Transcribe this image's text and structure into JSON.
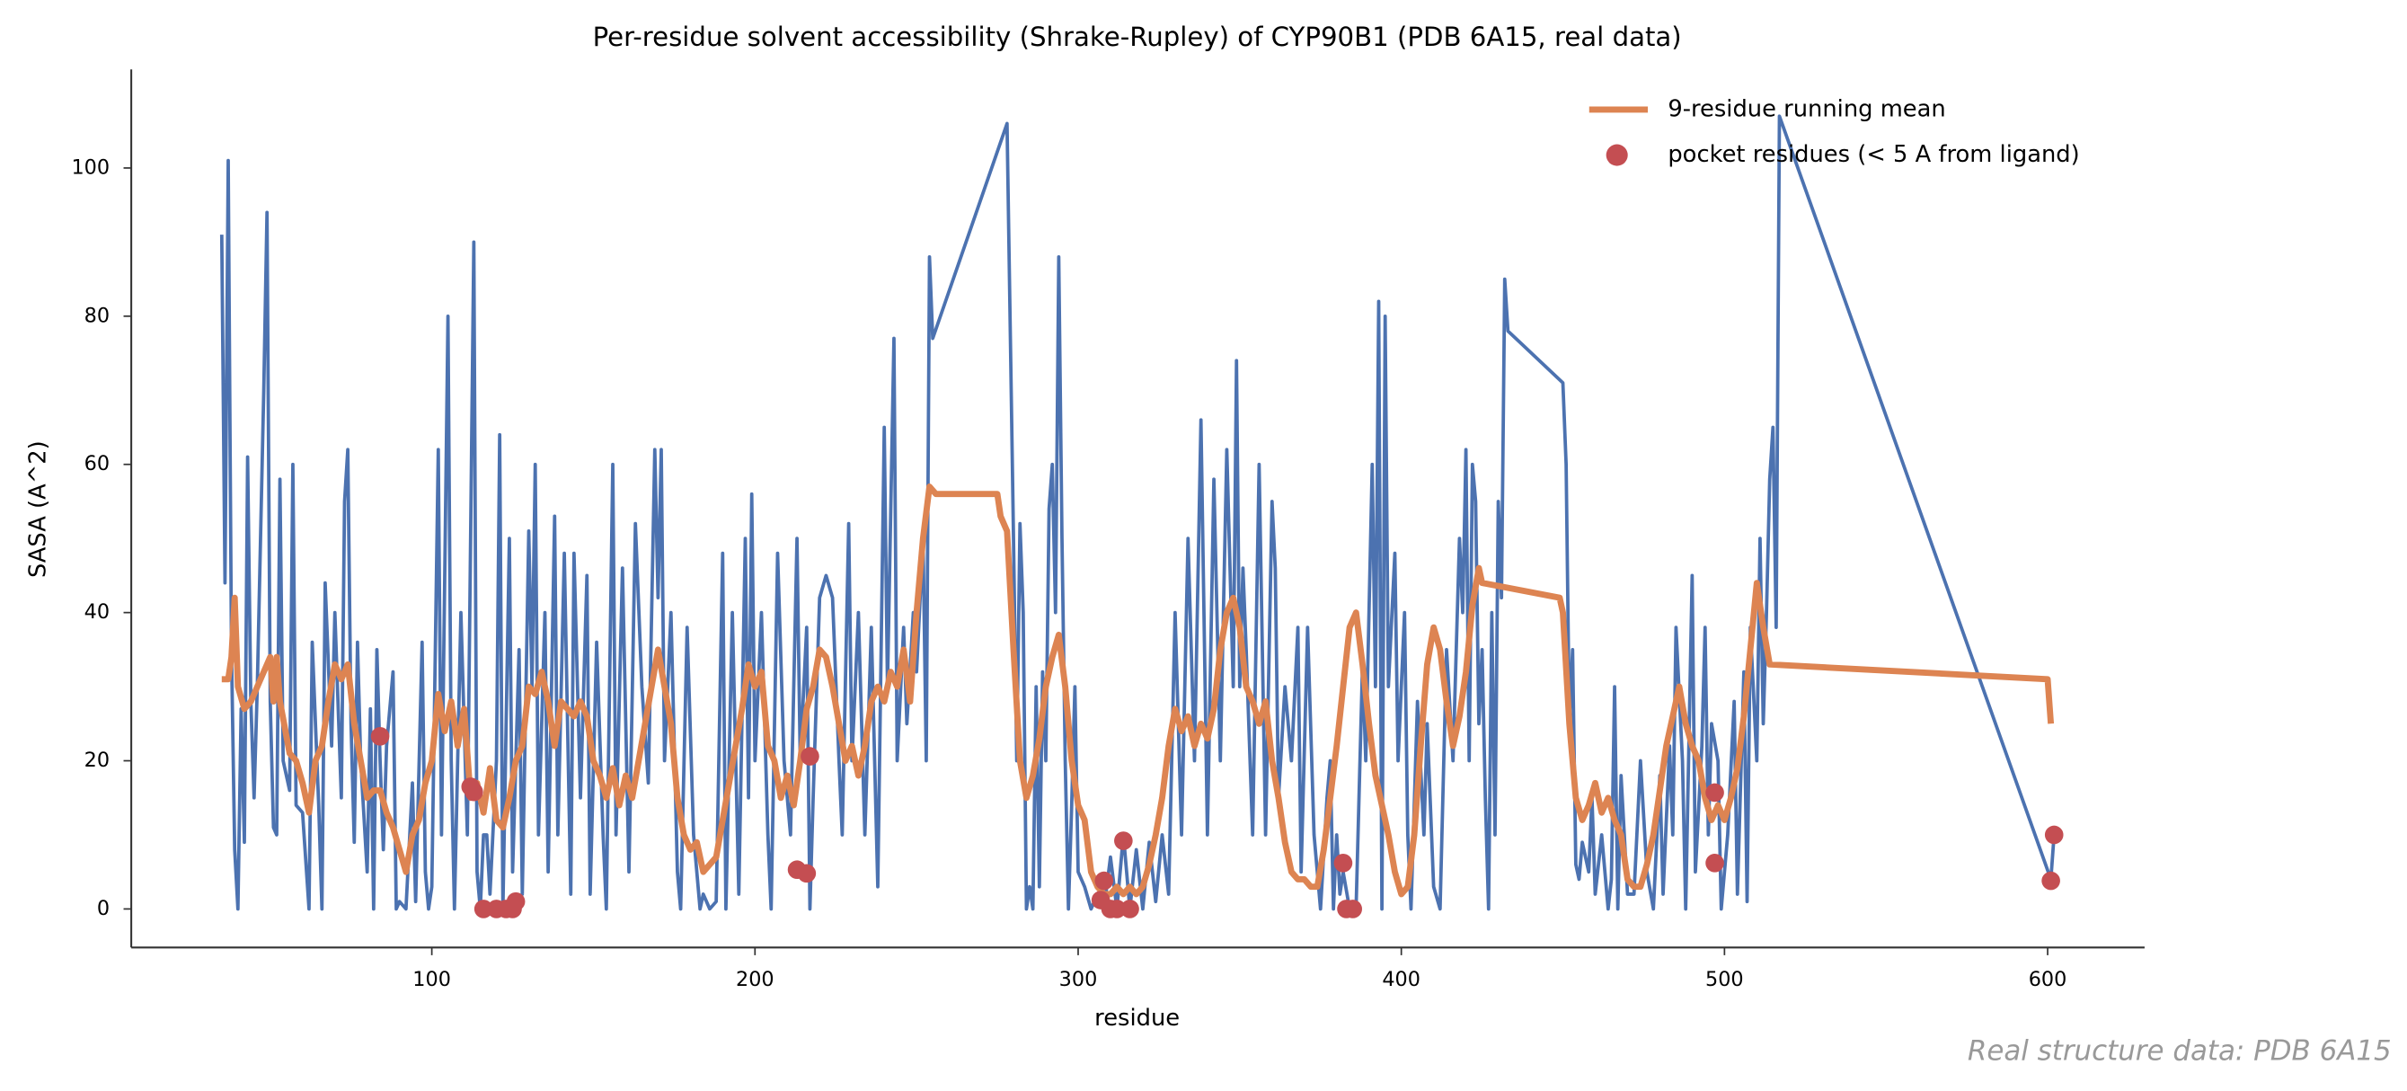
{
  "chart_data": {
    "type": "line",
    "title": "Per-residue solvent accessibility (Shrake-Rupley) of CYP90B1 (PDB 6A15, real data)",
    "xlabel": "residue",
    "ylabel": "SASA (A^2)",
    "annotation": "Real structure data: PDB 6A15",
    "xlim": [
      7,
      630
    ],
    "ylim": [
      -5.2,
      113.3
    ],
    "xticks": [
      100,
      200,
      300,
      400,
      500,
      600
    ],
    "yticks": [
      0,
      20,
      40,
      60,
      80,
      100
    ],
    "legend": "upper right",
    "grid": false,
    "series": [
      {
        "color": "#4c72b0",
        "x": [
          35,
          36,
          37,
          38,
          39,
          40,
          41,
          42,
          43,
          44,
          45,
          46,
          48,
          49,
          50,
          51,
          52,
          53,
          54,
          56,
          57,
          58,
          60,
          62,
          63,
          65,
          66,
          67,
          69,
          70,
          72,
          73,
          74,
          75,
          76,
          77,
          78,
          80,
          81,
          82,
          83,
          84,
          85,
          86,
          88,
          89,
          90,
          92,
          94,
          95,
          97,
          98,
          99,
          100,
          102,
          103,
          105,
          106,
          107,
          109,
          111,
          113,
          114,
          115,
          116,
          117,
          118,
          120,
          121,
          122,
          124,
          125,
          127,
          128,
          130,
          131,
          132,
          133,
          135,
          136,
          138,
          139,
          141,
          143,
          144,
          146,
          148,
          149,
          151,
          153,
          154,
          156,
          157,
          159,
          161,
          163,
          165,
          167,
          169,
          170,
          171,
          172,
          174,
          176,
          177,
          179,
          181,
          183,
          184,
          186,
          188,
          190,
          191,
          193,
          195,
          197,
          198,
          199,
          200,
          202,
          204,
          205,
          207,
          209,
          211,
          213,
          214,
          216,
          217,
          218,
          220,
          222,
          224,
          226,
          227,
          229,
          230,
          232,
          234,
          236,
          238,
          240,
          241,
          243,
          244,
          246,
          247,
          249,
          250,
          252,
          253,
          254,
          255,
          278,
          280,
          281,
          282,
          283,
          284,
          285,
          286,
          287,
          288,
          289,
          290,
          291,
          292,
          293,
          294,
          295,
          296,
          297,
          298,
          299,
          300,
          302,
          304,
          306,
          308,
          310,
          312,
          314,
          316,
          318,
          320,
          322,
          324,
          326,
          328,
          330,
          332,
          334,
          336,
          338,
          340,
          342,
          344,
          346,
          348,
          349,
          350,
          351,
          352,
          354,
          356,
          358,
          360,
          361,
          362,
          364,
          366,
          368,
          369,
          371,
          373,
          375,
          377,
          378,
          379,
          380,
          381,
          382,
          384,
          386,
          388,
          389,
          391,
          392,
          393,
          394,
          395,
          396,
          398,
          399,
          401,
          402,
          403,
          405,
          407,
          408,
          410,
          412,
          414,
          416,
          418,
          419,
          420,
          421,
          422,
          423,
          424,
          425,
          426,
          427,
          428,
          429,
          430,
          431,
          432,
          433,
          450,
          451,
          452,
          453,
          454,
          455,
          456,
          458,
          459,
          460,
          462,
          464,
          465,
          466,
          467,
          468,
          470,
          472,
          474,
          476,
          478,
          480,
          481,
          483,
          484,
          485,
          487,
          488,
          490,
          491,
          493,
          494,
          495,
          496,
          498,
          499,
          501,
          503,
          504,
          506,
          507,
          508,
          510,
          511,
          512,
          513,
          514,
          515,
          516,
          517,
          601,
          602
        ],
        "values": [
          91,
          44,
          101,
          35,
          8,
          0,
          27,
          9,
          61,
          28,
          15,
          30,
          70,
          94,
          28,
          11,
          10,
          58,
          20,
          16,
          60,
          14,
          13,
          0,
          36,
          14,
          0,
          44,
          22,
          40,
          15,
          55,
          62,
          25,
          9,
          36,
          20,
          5,
          27,
          0,
          35,
          20,
          8,
          22,
          32,
          0,
          1,
          0,
          17,
          1,
          36,
          5,
          0,
          3,
          62,
          10,
          80,
          20,
          0,
          40,
          10,
          90,
          5,
          0,
          10,
          10,
          2,
          20,
          64,
          0,
          50,
          5,
          35,
          2,
          51,
          30,
          60,
          10,
          40,
          5,
          53,
          10,
          48,
          2,
          48,
          15,
          45,
          2,
          36,
          10,
          0,
          60,
          10,
          46,
          5,
          52,
          30,
          17,
          62,
          42,
          62,
          20,
          40,
          5,
          0,
          38,
          10,
          0,
          2,
          0,
          1,
          48,
          0,
          40,
          2,
          50,
          15,
          56,
          20,
          40,
          10,
          0,
          48,
          20,
          10,
          50,
          20,
          38,
          0,
          15,
          42,
          45,
          42,
          20,
          10,
          52,
          20,
          40,
          10,
          38,
          3,
          65,
          30,
          77,
          20,
          38,
          25,
          40,
          32,
          50,
          20,
          88,
          77,
          106,
          50,
          20,
          52,
          40,
          0,
          3,
          0,
          30,
          3,
          32,
          20,
          54,
          60,
          40,
          88,
          50,
          20,
          0,
          14,
          30,
          5,
          3,
          0,
          2,
          0,
          7,
          0,
          10,
          0,
          8,
          0,
          9,
          1,
          10,
          2,
          40,
          10,
          50,
          20,
          66,
          10,
          58,
          20,
          62,
          30,
          74,
          30,
          46,
          35,
          10,
          60,
          10,
          55,
          46,
          15,
          30,
          20,
          38,
          5,
          38,
          10,
          0,
          15,
          20,
          0,
          10,
          2,
          5,
          0,
          0,
          33,
          20,
          60,
          30,
          82,
          0,
          80,
          30,
          48,
          20,
          40,
          10,
          0,
          28,
          10,
          25,
          3,
          0,
          35,
          20,
          50,
          40,
          62,
          20,
          60,
          55,
          25,
          35,
          15,
          0,
          40,
          10,
          55,
          42,
          85,
          78,
          71,
          60,
          25,
          35,
          6,
          4,
          9,
          5,
          15,
          2,
          10,
          0,
          4,
          30,
          0,
          18,
          2,
          2,
          20,
          5,
          0,
          18,
          2,
          22,
          10,
          38,
          20,
          0,
          45,
          5,
          22,
          38,
          10,
          25,
          20,
          0,
          10,
          28,
          2,
          32,
          1,
          38,
          20,
          50,
          25,
          40,
          58,
          65,
          38,
          107,
          4,
          10
        ]
      },
      {
        "name": "9-residue running mean",
        "color": "#dd8452",
        "x": [
          35,
          37,
          38,
          39,
          40,
          42,
          44,
          46,
          48,
          50,
          51,
          52,
          53,
          56,
          58,
          60,
          62,
          64,
          66,
          68,
          70,
          72,
          74,
          76,
          78,
          80,
          82,
          84,
          86,
          88,
          90,
          92,
          94,
          96,
          98,
          100,
          102,
          104,
          106,
          108,
          110,
          112,
          114,
          116,
          118,
          120,
          122,
          124,
          126,
          128,
          130,
          132,
          134,
          136,
          138,
          140,
          142,
          144,
          146,
          148,
          150,
          152,
          154,
          156,
          158,
          160,
          162,
          164,
          166,
          168,
          170,
          172,
          174,
          176,
          178,
          180,
          182,
          184,
          186,
          188,
          190,
          192,
          194,
          196,
          198,
          200,
          202,
          204,
          206,
          208,
          210,
          212,
          214,
          216,
          218,
          220,
          222,
          224,
          226,
          228,
          230,
          232,
          234,
          236,
          238,
          240,
          242,
          244,
          246,
          248,
          250,
          252,
          254,
          256,
          275,
          276,
          278,
          280,
          282,
          284,
          286,
          288,
          290,
          292,
          294,
          296,
          298,
          300,
          302,
          304,
          306,
          308,
          310,
          312,
          314,
          316,
          318,
          320,
          322,
          324,
          326,
          328,
          330,
          332,
          334,
          336,
          338,
          340,
          342,
          344,
          346,
          348,
          350,
          352,
          354,
          356,
          358,
          360,
          362,
          364,
          366,
          368,
          370,
          372,
          374,
          376,
          378,
          380,
          382,
          384,
          386,
          388,
          390,
          392,
          394,
          396,
          398,
          400,
          402,
          404,
          406,
          408,
          410,
          412,
          414,
          416,
          418,
          420,
          422,
          424,
          425,
          449,
          450,
          452,
          454,
          456,
          458,
          460,
          462,
          464,
          466,
          468,
          470,
          472,
          474,
          476,
          478,
          480,
          482,
          484,
          486,
          488,
          490,
          492,
          494,
          496,
          498,
          500,
          502,
          504,
          506,
          508,
          510,
          512,
          514,
          600,
          601
        ],
        "values": [
          31,
          31,
          34,
          42,
          30,
          27,
          28,
          30,
          32,
          34,
          28,
          34,
          28,
          21,
          20,
          17,
          13,
          20,
          22,
          28,
          33,
          31,
          33,
          25,
          20,
          15,
          16,
          16,
          13,
          11,
          8,
          5,
          10,
          12,
          17,
          20,
          29,
          24,
          28,
          22,
          27,
          15,
          17,
          13,
          19,
          12,
          11,
          15,
          20,
          22,
          30,
          29,
          32,
          28,
          22,
          28,
          27,
          26,
          28,
          26,
          20,
          18,
          15,
          19,
          14,
          18,
          15,
          20,
          25,
          30,
          35,
          30,
          25,
          15,
          10,
          8,
          9,
          5,
          6,
          7,
          12,
          17,
          22,
          27,
          33,
          30,
          32,
          22,
          20,
          15,
          18,
          14,
          20,
          27,
          30,
          35,
          34,
          30,
          25,
          20,
          22,
          18,
          22,
          28,
          30,
          28,
          32,
          30,
          35,
          28,
          40,
          50,
          57,
          56,
          56,
          53,
          51,
          35,
          20,
          15,
          18,
          23,
          30,
          34,
          37,
          30,
          20,
          14,
          12,
          5,
          3,
          2,
          2,
          3,
          2,
          3,
          2,
          3,
          6,
          10,
          15,
          22,
          27,
          24,
          26,
          22,
          25,
          23,
          27,
          35,
          40,
          42,
          38,
          30,
          28,
          25,
          28,
          20,
          15,
          9,
          5,
          4,
          4,
          3,
          3,
          8,
          15,
          22,
          30,
          38,
          40,
          33,
          25,
          18,
          14,
          10,
          5,
          2,
          3,
          10,
          22,
          33,
          38,
          35,
          28,
          22,
          26,
          32,
          41,
          46,
          44,
          42,
          40,
          25,
          15,
          12,
          14,
          17,
          13,
          15,
          12,
          10,
          4,
          3,
          3,
          6,
          10,
          16,
          22,
          26,
          30,
          25,
          22,
          20,
          15,
          12,
          14,
          12,
          15,
          19,
          26,
          35,
          44,
          38,
          33,
          31,
          25
        ]
      },
      {
        "name": "pocket residues (< 5 A from ligand)",
        "type": "scatter",
        "color": "#c44e52",
        "x": [
          84,
          112,
          113,
          116,
          120,
          123,
          125,
          126,
          213,
          216,
          217,
          307,
          308,
          310,
          312,
          314,
          316,
          382,
          383,
          385,
          497,
          497,
          601,
          602
        ],
        "values": [
          23.3,
          16.5,
          15.8,
          0,
          0,
          0,
          0,
          1,
          5.3,
          4.8,
          20.6,
          1.2,
          3.8,
          0,
          0,
          9.2,
          0,
          6.2,
          0,
          0,
          6.2,
          15.7,
          3.8,
          10
        ]
      }
    ]
  }
}
